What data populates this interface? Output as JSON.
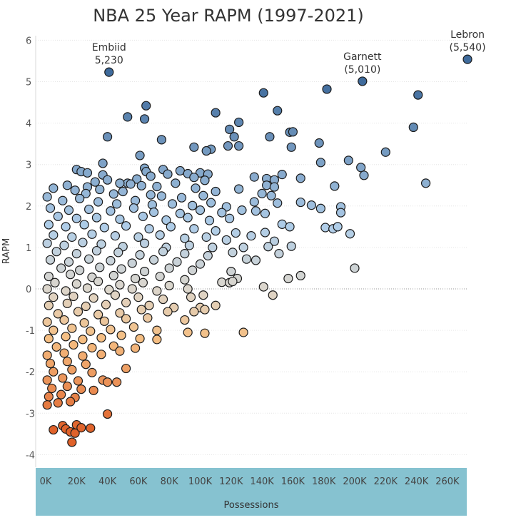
{
  "chart_data": {
    "type": "scatter",
    "title": "NBA 25 Year RAPM (1997-2021)",
    "xlabel": "Possessions",
    "ylabel": "RAPM",
    "xlim": [
      0,
      280000
    ],
    "ylim": [
      -4.3,
      6.2
    ],
    "x_ticks": [
      "0K",
      "20K",
      "40K",
      "60K",
      "80K",
      "100K",
      "120K",
      "140K",
      "160K",
      "180K",
      "200K",
      "220K",
      "240K",
      "260K"
    ],
    "y_ticks": [
      "-4",
      "-3",
      "-2",
      "-1",
      "0",
      "1",
      "2",
      "3",
      "4",
      "5",
      "6"
    ],
    "color_scale": {
      "low": "#e0622a",
      "mid": "#dcd6cc",
      "high": "#3f6b9c"
    },
    "annotations": [
      {
        "name": "Embiid",
        "value": "5,230",
        "x": 41000,
        "y": 5.23
      },
      {
        "name": "Garnett",
        "value": "(5,010)",
        "x": 205000,
        "y": 5.01
      },
      {
        "name": "Lebron",
        "value": "(5,540)",
        "x": 273000,
        "y": 5.54
      }
    ],
    "points": [
      [
        273000,
        5.54
      ],
      [
        205000,
        5.01
      ],
      [
        41000,
        5.23
      ],
      [
        182000,
        4.82
      ],
      [
        141000,
        4.73
      ],
      [
        241000,
        4.68
      ],
      [
        65000,
        4.42
      ],
      [
        110000,
        4.25
      ],
      [
        150000,
        4.3
      ],
      [
        53000,
        4.15
      ],
      [
        64000,
        4.1
      ],
      [
        125000,
        4.02
      ],
      [
        119000,
        3.85
      ],
      [
        238000,
        3.9
      ],
      [
        158000,
        3.78
      ],
      [
        160000,
        3.79
      ],
      [
        40000,
        3.67
      ],
      [
        145000,
        3.67
      ],
      [
        122000,
        3.67
      ],
      [
        75000,
        3.6
      ],
      [
        177000,
        3.52
      ],
      [
        96000,
        3.42
      ],
      [
        107000,
        3.37
      ],
      [
        118000,
        3.45
      ],
      [
        125000,
        3.45
      ],
      [
        159000,
        3.42
      ],
      [
        220000,
        3.3
      ],
      [
        61000,
        3.22
      ],
      [
        104000,
        3.33
      ],
      [
        196000,
        3.1
      ],
      [
        37000,
        3.03
      ],
      [
        178000,
        3.05
      ],
      [
        204000,
        2.93
      ],
      [
        64000,
        2.91
      ],
      [
        65000,
        2.83
      ],
      [
        20000,
        2.88
      ],
      [
        23000,
        2.83
      ],
      [
        27000,
        2.8
      ],
      [
        37000,
        2.75
      ],
      [
        76000,
        2.88
      ],
      [
        87000,
        2.85
      ],
      [
        100000,
        2.8
      ],
      [
        105000,
        2.77
      ],
      [
        92000,
        2.78
      ],
      [
        68000,
        2.72
      ],
      [
        79000,
        2.77
      ],
      [
        153000,
        2.76
      ],
      [
        206000,
        2.74
      ],
      [
        96000,
        2.69
      ],
      [
        103000,
        2.62
      ],
      [
        135000,
        2.7
      ],
      [
        143000,
        2.66
      ],
      [
        148000,
        2.63
      ],
      [
        165000,
        2.67
      ],
      [
        246000,
        2.55
      ],
      [
        59000,
        2.65
      ],
      [
        53000,
        2.55
      ],
      [
        14000,
        2.5
      ],
      [
        27000,
        2.46
      ],
      [
        32000,
        2.58
      ],
      [
        40000,
        2.63
      ],
      [
        48000,
        2.55
      ],
      [
        55000,
        2.53
      ],
      [
        62000,
        2.49
      ],
      [
        72000,
        2.47
      ],
      [
        84000,
        2.55
      ],
      [
        97000,
        2.43
      ],
      [
        110000,
        2.35
      ],
      [
        125000,
        2.41
      ],
      [
        143000,
        2.5
      ],
      [
        148000,
        2.46
      ],
      [
        187000,
        2.48
      ],
      [
        5000,
        2.43
      ],
      [
        19000,
        2.38
      ],
      [
        26000,
        2.3
      ],
      [
        35000,
        2.4
      ],
      [
        44000,
        2.29
      ],
      [
        50000,
        2.35
      ],
      [
        68000,
        2.27
      ],
      [
        75000,
        2.24
      ],
      [
        88000,
        2.2
      ],
      [
        102000,
        2.25
      ],
      [
        140000,
        2.3
      ],
      [
        146000,
        2.25
      ],
      [
        1000,
        2.22
      ],
      [
        11000,
        2.13
      ],
      [
        22000,
        2.18
      ],
      [
        34000,
        2.1
      ],
      [
        46000,
        2.05
      ],
      [
        58000,
        2.13
      ],
      [
        69000,
        2.03
      ],
      [
        82000,
        2.05
      ],
      [
        95000,
        2.01
      ],
      [
        107000,
        2.08
      ],
      [
        117000,
        1.98
      ],
      [
        135000,
        2.1
      ],
      [
        150000,
        2.07
      ],
      [
        165000,
        2.09
      ],
      [
        172000,
        2.02
      ],
      [
        178000,
        1.94
      ],
      [
        191000,
        1.98
      ],
      [
        191000,
        1.84
      ],
      [
        3000,
        1.95
      ],
      [
        15000,
        1.9
      ],
      [
        28000,
        1.92
      ],
      [
        42000,
        1.88
      ],
      [
        57000,
        1.95
      ],
      [
        70000,
        1.85
      ],
      [
        87000,
        1.82
      ],
      [
        100000,
        1.9
      ],
      [
        114000,
        1.84
      ],
      [
        127000,
        1.9
      ],
      [
        136000,
        1.88
      ],
      [
        142000,
        1.82
      ],
      [
        8000,
        1.75
      ],
      [
        20000,
        1.7
      ],
      [
        33000,
        1.72
      ],
      [
        48000,
        1.68
      ],
      [
        63000,
        1.75
      ],
      [
        78000,
        1.66
      ],
      [
        92000,
        1.72
      ],
      [
        106000,
        1.65
      ],
      [
        119000,
        1.7
      ],
      [
        153000,
        1.56
      ],
      [
        158000,
        1.5
      ],
      [
        181000,
        1.48
      ],
      [
        186000,
        1.45
      ],
      [
        189000,
        1.5
      ],
      [
        197000,
        1.33
      ],
      [
        2000,
        1.55
      ],
      [
        13000,
        1.5
      ],
      [
        25000,
        1.55
      ],
      [
        38000,
        1.48
      ],
      [
        52000,
        1.52
      ],
      [
        67000,
        1.45
      ],
      [
        81000,
        1.5
      ],
      [
        96000,
        1.45
      ],
      [
        110000,
        1.4
      ],
      [
        123000,
        1.35
      ],
      [
        142000,
        1.36
      ],
      [
        5000,
        1.3
      ],
      [
        17000,
        1.25
      ],
      [
        30000,
        1.32
      ],
      [
        45000,
        1.28
      ],
      [
        60000,
        1.25
      ],
      [
        74000,
        1.3
      ],
      [
        90000,
        1.22
      ],
      [
        104000,
        1.25
      ],
      [
        117000,
        1.18
      ],
      [
        133000,
        1.28
      ],
      [
        148000,
        1.15
      ],
      [
        1000,
        1.1
      ],
      [
        12000,
        1.05
      ],
      [
        24000,
        1.12
      ],
      [
        36000,
        1.08
      ],
      [
        50000,
        1.02
      ],
      [
        64000,
        1.1
      ],
      [
        78000,
        1.0
      ],
      [
        93000,
        1.05
      ],
      [
        108000,
        1.0
      ],
      [
        128000,
        1.0
      ],
      [
        144000,
        1.02
      ],
      [
        159000,
        1.03
      ],
      [
        7000,
        0.9
      ],
      [
        20000,
        0.85
      ],
      [
        33000,
        0.92
      ],
      [
        47000,
        0.88
      ],
      [
        61000,
        0.82
      ],
      [
        76000,
        0.9
      ],
      [
        90000,
        0.85
      ],
      [
        105000,
        0.8
      ],
      [
        121000,
        0.88
      ],
      [
        151000,
        0.85
      ],
      [
        3000,
        0.7
      ],
      [
        15000,
        0.65
      ],
      [
        28000,
        0.72
      ],
      [
        42000,
        0.68
      ],
      [
        56000,
        0.62
      ],
      [
        70000,
        0.7
      ],
      [
        85000,
        0.65
      ],
      [
        100000,
        0.6
      ],
      [
        130000,
        0.72
      ],
      [
        136000,
        0.69
      ],
      [
        10000,
        0.5
      ],
      [
        22000,
        0.45
      ],
      [
        35000,
        0.52
      ],
      [
        49000,
        0.48
      ],
      [
        64000,
        0.42
      ],
      [
        80000,
        0.5
      ],
      [
        95000,
        0.45
      ],
      [
        120000,
        0.42
      ],
      [
        200000,
        0.5
      ],
      [
        2000,
        0.3
      ],
      [
        16000,
        0.35
      ],
      [
        30000,
        0.28
      ],
      [
        44000,
        0.32
      ],
      [
        58000,
        0.25
      ],
      [
        74000,
        0.3
      ],
      [
        90000,
        0.22
      ],
      [
        124000,
        0.25
      ],
      [
        165000,
        0.32
      ],
      [
        157000,
        0.25
      ],
      [
        6000,
        0.15
      ],
      [
        20000,
        0.12
      ],
      [
        34000,
        0.18
      ],
      [
        48000,
        0.1
      ],
      [
        63000,
        0.15
      ],
      [
        80000,
        0.08
      ],
      [
        114000,
        0.16
      ],
      [
        119000,
        0.15
      ],
      [
        121000,
        0.18
      ],
      [
        141000,
        0.05
      ],
      [
        1000,
        0.0
      ],
      [
        13000,
        -0.05
      ],
      [
        27000,
        0.02
      ],
      [
        41000,
        -0.02
      ],
      [
        56000,
        0.0
      ],
      [
        72000,
        -0.05
      ],
      [
        92000,
        0.0
      ],
      [
        147000,
        -0.15
      ],
      [
        5000,
        -0.2
      ],
      [
        18000,
        -0.18
      ],
      [
        31000,
        -0.22
      ],
      [
        45000,
        -0.15
      ],
      [
        60000,
        -0.2
      ],
      [
        76000,
        -0.25
      ],
      [
        94000,
        -0.2
      ],
      [
        102000,
        -0.15
      ],
      [
        2000,
        -0.4
      ],
      [
        14000,
        -0.35
      ],
      [
        26000,
        -0.42
      ],
      [
        39000,
        -0.38
      ],
      [
        52000,
        -0.33
      ],
      [
        67000,
        -0.4
      ],
      [
        83000,
        -0.45
      ],
      [
        100000,
        -0.45
      ],
      [
        110000,
        -0.4
      ],
      [
        8000,
        -0.6
      ],
      [
        21000,
        -0.55
      ],
      [
        34000,
        -0.62
      ],
      [
        48000,
        -0.58
      ],
      [
        62000,
        -0.5
      ],
      [
        79000,
        -0.55
      ],
      [
        96000,
        -0.55
      ],
      [
        103000,
        -0.5
      ],
      [
        1000,
        -0.8
      ],
      [
        12000,
        -0.75
      ],
      [
        25000,
        -0.82
      ],
      [
        38000,
        -0.78
      ],
      [
        52000,
        -0.72
      ],
      [
        66000,
        -0.7
      ],
      [
        90000,
        -0.75
      ],
      [
        5000,
        -1.0
      ],
      [
        17000,
        -0.95
      ],
      [
        29000,
        -1.02
      ],
      [
        42000,
        -0.98
      ],
      [
        57000,
        -0.92
      ],
      [
        72000,
        -1.0
      ],
      [
        92000,
        -1.05
      ],
      [
        103000,
        -1.07
      ],
      [
        128000,
        -1.05
      ],
      [
        2000,
        -1.2
      ],
      [
        13000,
        -1.15
      ],
      [
        24000,
        -1.22
      ],
      [
        36000,
        -1.18
      ],
      [
        49000,
        -1.12
      ],
      [
        61000,
        -1.2
      ],
      [
        72000,
        -1.22
      ],
      [
        7000,
        -1.4
      ],
      [
        18000,
        -1.35
      ],
      [
        30000,
        -1.42
      ],
      [
        44000,
        -1.38
      ],
      [
        58000,
        -1.43
      ],
      [
        1000,
        -1.6
      ],
      [
        12000,
        -1.55
      ],
      [
        24000,
        -1.62
      ],
      [
        36000,
        -1.58
      ],
      [
        48000,
        -1.5
      ],
      [
        3000,
        -1.8
      ],
      [
        14000,
        -1.75
      ],
      [
        26000,
        -1.82
      ],
      [
        52000,
        -1.92
      ],
      [
        5000,
        -2.0
      ],
      [
        17000,
        -1.95
      ],
      [
        30000,
        -2.02
      ],
      [
        1000,
        -2.2
      ],
      [
        11000,
        -2.15
      ],
      [
        21000,
        -2.22
      ],
      [
        37000,
        -2.2
      ],
      [
        46000,
        -2.25
      ],
      [
        40000,
        -2.25
      ],
      [
        4000,
        -2.4
      ],
      [
        14000,
        -2.35
      ],
      [
        23000,
        -2.42
      ],
      [
        31000,
        -2.45
      ],
      [
        2000,
        -2.6
      ],
      [
        10000,
        -2.55
      ],
      [
        19000,
        -2.62
      ],
      [
        1000,
        -2.8
      ],
      [
        8000,
        -2.75
      ],
      [
        16000,
        -2.72
      ],
      [
        40000,
        -3.02
      ],
      [
        5000,
        -3.4
      ],
      [
        11000,
        -3.3
      ],
      [
        13000,
        -3.38
      ],
      [
        16000,
        -3.45
      ],
      [
        17000,
        -3.7
      ],
      [
        19000,
        -3.48
      ],
      [
        20000,
        -3.28
      ],
      [
        23000,
        -3.35
      ],
      [
        29000,
        -3.36
      ]
    ]
  }
}
